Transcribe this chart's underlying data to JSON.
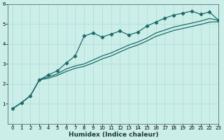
{
  "xlabel": "Humidex (Indice chaleur)",
  "bg_color": "#cceee8",
  "line_color": "#1e6b6b",
  "grid_color": "#aadada",
  "x_values": [
    0,
    1,
    2,
    3,
    4,
    5,
    6,
    7,
    8,
    9,
    10,
    11,
    12,
    13,
    14,
    15,
    16,
    17,
    18,
    19,
    20,
    21,
    22,
    23
  ],
  "line1": [
    0.75,
    1.05,
    1.4,
    2.2,
    2.45,
    2.65,
    3.05,
    3.4,
    4.4,
    4.55,
    4.35,
    4.5,
    4.65,
    4.45,
    4.6,
    4.9,
    5.1,
    5.3,
    5.45,
    5.55,
    5.65,
    5.5,
    5.6,
    5.2
  ],
  "line2": [
    0.75,
    1.05,
    1.4,
    2.2,
    2.35,
    2.5,
    2.75,
    2.9,
    3.0,
    3.2,
    3.4,
    3.55,
    3.75,
    3.95,
    4.1,
    4.3,
    4.55,
    4.7,
    4.85,
    4.95,
    5.05,
    5.15,
    5.28,
    5.2
  ],
  "line3": [
    0.75,
    1.05,
    1.4,
    2.2,
    2.28,
    2.42,
    2.62,
    2.78,
    2.88,
    3.05,
    3.25,
    3.4,
    3.6,
    3.8,
    3.95,
    4.15,
    4.38,
    4.53,
    4.68,
    4.78,
    4.88,
    4.98,
    5.1,
    5.12
  ],
  "ylim_min": 0,
  "ylim_max": 6,
  "xlim_min": -0.5,
  "xlim_max": 23,
  "yticks": [
    1,
    2,
    3,
    4,
    5,
    6
  ],
  "xticks": [
    0,
    1,
    2,
    3,
    4,
    5,
    6,
    7,
    8,
    9,
    10,
    11,
    12,
    13,
    14,
    15,
    16,
    17,
    18,
    19,
    20,
    21,
    22,
    23
  ],
  "marker_style": "D",
  "marker_size": 2.2,
  "line_width": 0.9,
  "tick_fontsize": 5.0,
  "xlabel_fontsize": 6.5
}
